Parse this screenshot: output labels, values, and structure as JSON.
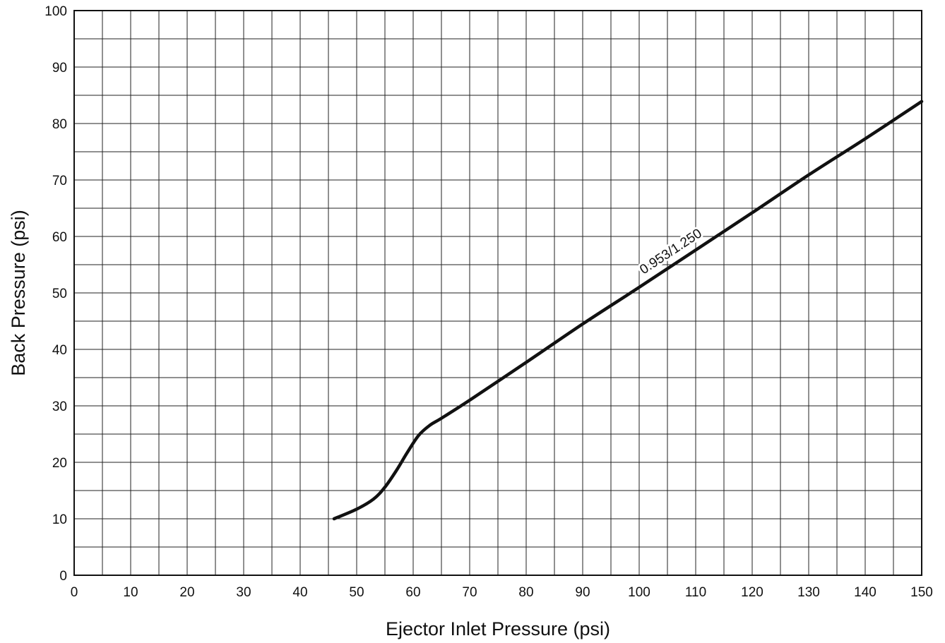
{
  "chart_data": {
    "type": "line",
    "title": "",
    "xlabel": "Ejector Inlet Pressure (psi)",
    "ylabel": "Back Pressure (psi)",
    "xlim": [
      0,
      150
    ],
    "ylim": [
      0,
      100
    ],
    "x_ticks": [
      0,
      10,
      20,
      30,
      40,
      50,
      60,
      70,
      80,
      90,
      100,
      110,
      120,
      130,
      140,
      150
    ],
    "y_ticks": [
      0,
      10,
      20,
      30,
      40,
      50,
      60,
      70,
      80,
      90,
      100
    ],
    "x_minor_step": 5,
    "y_minor_step": 5,
    "grid": true,
    "legend": "none",
    "colors": {
      "line": "#111111",
      "grid": "#222222",
      "background": "#ffffff"
    },
    "series": [
      {
        "label_text": "0.953/1.250",
        "x": [
          46,
          50,
          53,
          55,
          57,
          59,
          61,
          63,
          65,
          70,
          80,
          90,
          100,
          110,
          120,
          130,
          140,
          150
        ],
        "y": [
          10.0,
          11.7,
          13.5,
          15.6,
          18.5,
          21.8,
          24.8,
          26.6,
          27.8,
          31.0,
          37.7,
          44.5,
          51.0,
          57.6,
          64.2,
          70.9,
          77.3,
          83.9
        ]
      }
    ]
  }
}
